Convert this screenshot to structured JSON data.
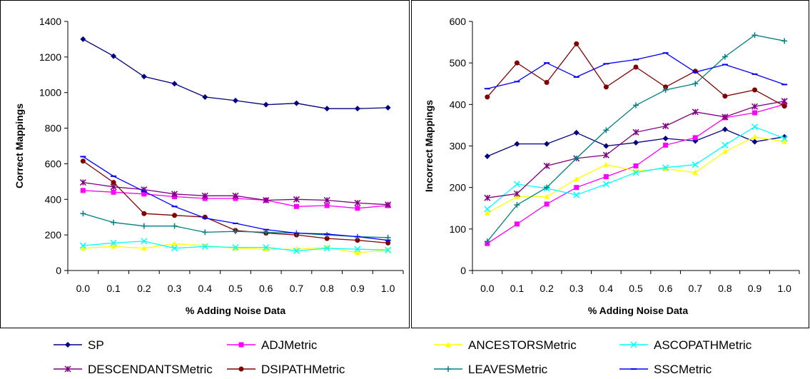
{
  "chart_data": [
    {
      "type": "line",
      "title": "",
      "xlabel": "%  Adding Noise Data",
      "ylabel": "Correct Mappings",
      "x": [
        "0.0",
        "0.1",
        "0.2",
        "0.3",
        "0.4",
        "0.5",
        "0.6",
        "0.7",
        "0.8",
        "0.9",
        "1.0"
      ],
      "ylim": [
        0,
        1400
      ],
      "yticks": [
        "0",
        "200",
        "400",
        "600",
        "800",
        "1000",
        "1200",
        "1400"
      ],
      "grid": false,
      "series": [
        {
          "name": "SP",
          "color": "#000080",
          "marker": "diamond",
          "values": [
            1300,
            1205,
            1090,
            1050,
            975,
            955,
            932,
            940,
            910,
            910,
            915
          ]
        },
        {
          "name": "ADJMetric",
          "color": "#ff00ff",
          "marker": "square",
          "values": [
            450,
            440,
            430,
            415,
            405,
            405,
            395,
            360,
            365,
            350,
            365
          ]
        },
        {
          "name": "ANCESTORSMetric",
          "color": "#ffff00",
          "marker": "triangle",
          "values": [
            125,
            135,
            125,
            150,
            140,
            125,
            120,
            120,
            130,
            100,
            115
          ]
        },
        {
          "name": "ASCOPATHMetric",
          "color": "#00ffff",
          "marker": "x",
          "values": [
            140,
            155,
            165,
            125,
            135,
            130,
            130,
            110,
            125,
            120,
            115
          ]
        },
        {
          "name": "DESCENDANTSMetric",
          "color": "#800080",
          "marker": "star",
          "values": [
            495,
            470,
            455,
            430,
            420,
            420,
            395,
            400,
            395,
            380,
            370
          ]
        },
        {
          "name": "DSIPATHMetric",
          "color": "#800000",
          "marker": "circle",
          "values": [
            615,
            495,
            320,
            310,
            300,
            225,
            210,
            200,
            180,
            170,
            155
          ]
        },
        {
          "name": "LEAVESMetric",
          "color": "#008080",
          "marker": "plus",
          "values": [
            320,
            270,
            250,
            250,
            215,
            220,
            215,
            210,
            200,
            190,
            185
          ]
        },
        {
          "name": "SSCMetric",
          "color": "#0000ff",
          "marker": "dash",
          "values": [
            640,
            530,
            445,
            360,
            295,
            265,
            230,
            210,
            205,
            190,
            170
          ]
        }
      ]
    },
    {
      "type": "line",
      "title": "",
      "xlabel": "%  Adding Noise Data",
      "ylabel": "Incorrect Mappings",
      "x": [
        "0.0",
        "0.1",
        "0.2",
        "0.3",
        "0.4",
        "0.5",
        "0.6",
        "0.7",
        "0.8",
        "0.9",
        "1.0"
      ],
      "ylim": [
        0,
        600
      ],
      "yticks": [
        "0",
        "100",
        "200",
        "300",
        "400",
        "500",
        "600"
      ],
      "grid": false,
      "series": [
        {
          "name": "SP",
          "color": "#000080",
          "marker": "diamond",
          "values": [
            275,
            305,
            305,
            332,
            300,
            308,
            318,
            312,
            340,
            310,
            322
          ]
        },
        {
          "name": "ADJMetric",
          "color": "#ff00ff",
          "marker": "square",
          "values": [
            65,
            112,
            160,
            200,
            226,
            252,
            302,
            320,
            368,
            380,
            400
          ]
        },
        {
          "name": "ANCESTORSMetric",
          "color": "#ffff00",
          "marker": "triangle",
          "values": [
            138,
            178,
            178,
            220,
            255,
            240,
            245,
            236,
            286,
            322,
            310
          ]
        },
        {
          "name": "ASCOPATHMetric",
          "color": "#00ffff",
          "marker": "x",
          "values": [
            148,
            208,
            198,
            182,
            208,
            236,
            248,
            255,
            302,
            346,
            318
          ]
        },
        {
          "name": "DESCENDANTSMetric",
          "color": "#800080",
          "marker": "star",
          "values": [
            175,
            185,
            252,
            270,
            278,
            333,
            348,
            382,
            370,
            395,
            408
          ]
        },
        {
          "name": "DSIPATHMetric",
          "color": "#800000",
          "marker": "circle",
          "values": [
            418,
            500,
            453,
            546,
            442,
            490,
            442,
            480,
            420,
            435,
            396
          ]
        },
        {
          "name": "LEAVESMetric",
          "color": "#008080",
          "marker": "plus",
          "values": [
            70,
            158,
            200,
            270,
            338,
            398,
            435,
            450,
            515,
            567,
            553
          ]
        },
        {
          "name": "SSCMetric",
          "color": "#0000ff",
          "marker": "dash",
          "values": [
            438,
            455,
            500,
            466,
            498,
            508,
            524,
            478,
            496,
            473,
            448
          ]
        }
      ]
    }
  ],
  "legend": {
    "placement": "bottom",
    "items": [
      {
        "label": "SP",
        "series": 0
      },
      {
        "label": "ADJMetric",
        "series": 1
      },
      {
        "label": "ANCESTORSMetric",
        "series": 2
      },
      {
        "label": "ASCOPATHMetric",
        "series": 3
      },
      {
        "label": "DESCENDANTSMetric",
        "series": 4
      },
      {
        "label": "DSIPATHMetric",
        "series": 5
      },
      {
        "label": "LEAVESMetric",
        "series": 6
      },
      {
        "label": "SSCMetric",
        "series": 7
      }
    ]
  }
}
